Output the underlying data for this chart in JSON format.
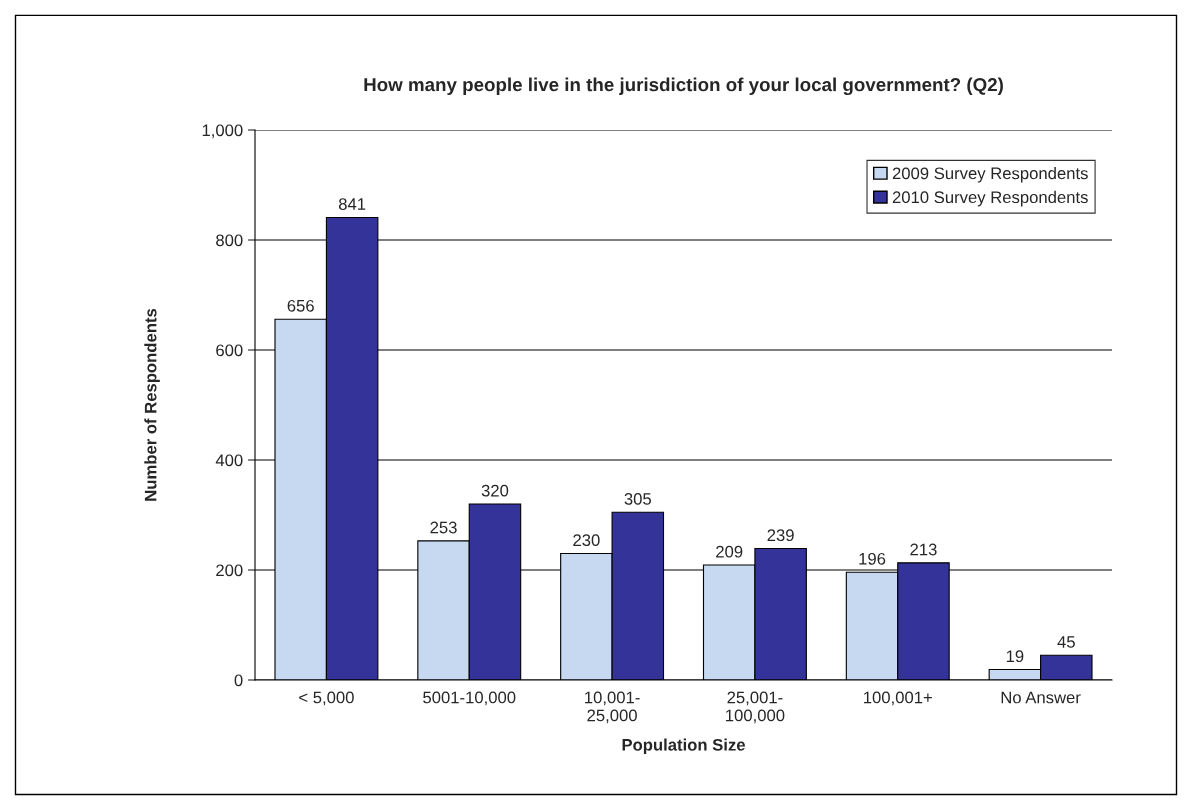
{
  "chart_data": {
    "type": "bar",
    "title": "How many people live in the jurisdiction of your local government? (Q2)",
    "xlabel": "Population Size",
    "ylabel": "Number of Respondents",
    "categories": [
      "< 5,000",
      "5001-10,000",
      "10,001-\n25,000",
      "25,001-\n100,000",
      "100,001+",
      "No Answer"
    ],
    "series": [
      {
        "name": "2009 Survey Respondents",
        "color": "#c6d9f0",
        "values": [
          656,
          253,
          230,
          209,
          196,
          19
        ]
      },
      {
        "name": "2010 Survey Respondents",
        "color": "#333399",
        "values": [
          841,
          320,
          305,
          239,
          213,
          45
        ]
      }
    ],
    "ylim": [
      0,
      1000
    ],
    "yticks": [
      0,
      200,
      400,
      600,
      800,
      {
        "value": 1000,
        "label": "1,000"
      }
    ],
    "grid": "y",
    "legend": "top right",
    "data_labels": true
  }
}
